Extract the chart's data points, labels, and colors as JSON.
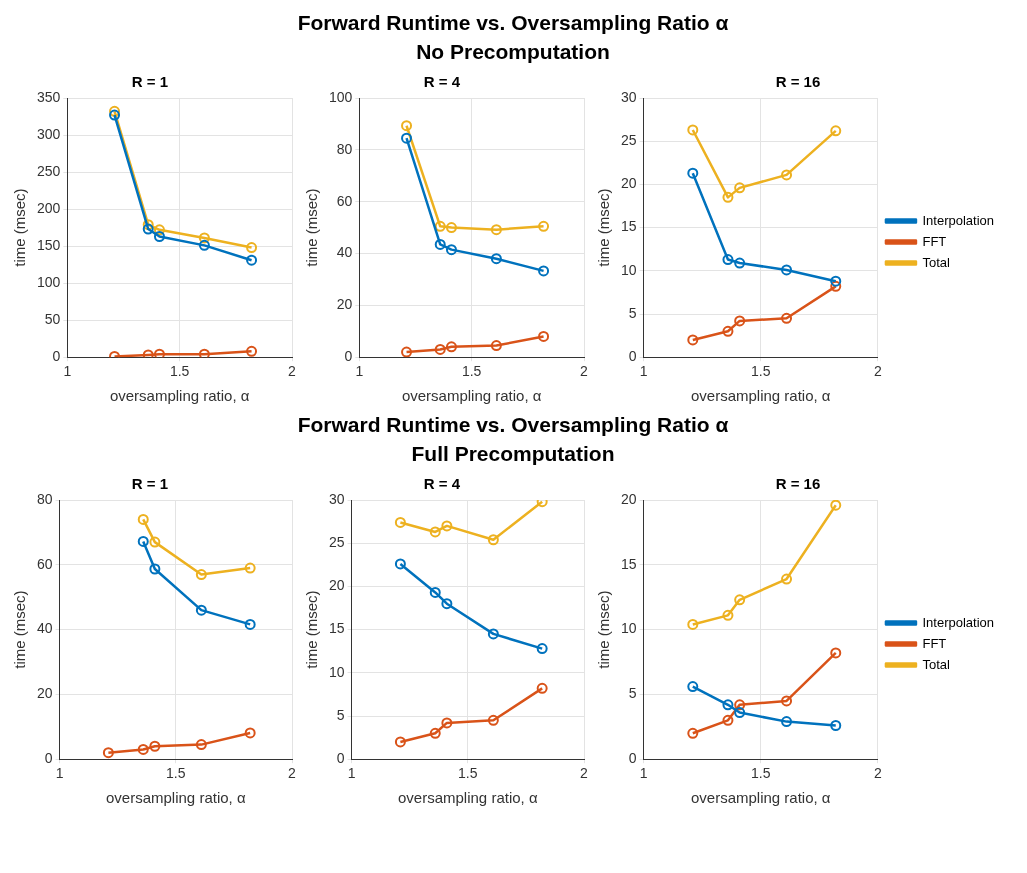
{
  "chart_data": [
    {
      "type": "other",
      "title": "Forward Runtime vs. Oversampling Ratio α",
      "subtitle": "No Precomputation"
    },
    {
      "type": "line",
      "title": "R = 1",
      "xlabel": "oversampling ratio, α",
      "ylabel": "time (msec)",
      "x": [
        1.21,
        1.36,
        1.41,
        1.61,
        1.82
      ],
      "xlim": [
        1,
        2
      ],
      "xticks": [
        1,
        1.5,
        2
      ],
      "ylim": [
        0,
        350
      ],
      "yticks": [
        0,
        50,
        100,
        150,
        200,
        250,
        300,
        350
      ],
      "grid": true,
      "marker": "circle",
      "line_style": "solid",
      "legend": false,
      "series": [
        {
          "color": "#0072bd",
          "values": [
            327,
            173,
            163,
            151,
            131
          ]
        },
        {
          "color": "#d95319",
          "values": [
            1,
            3,
            4,
            4,
            8
          ]
        },
        {
          "color": "#edb120",
          "values": [
            332,
            179,
            172,
            161,
            148
          ]
        }
      ]
    },
    {
      "type": "line",
      "title": "R = 4",
      "xlabel": "oversampling ratio, α",
      "ylabel": "time (msec)",
      "x": [
        1.21,
        1.36,
        1.41,
        1.61,
        1.82
      ],
      "xlim": [
        1,
        2
      ],
      "xticks": [
        1,
        1.5,
        2
      ],
      "ylim": [
        0,
        100
      ],
      "yticks": [
        0,
        20,
        40,
        60,
        80,
        100
      ],
      "grid": true,
      "marker": "circle",
      "line_style": "solid",
      "legend": false,
      "series": [
        {
          "color": "#0072bd",
          "values": [
            84.5,
            43.5,
            41.5,
            38,
            33.3
          ]
        },
        {
          "color": "#d95319",
          "values": [
            2,
            3,
            4,
            4.5,
            8
          ]
        },
        {
          "color": "#edb120",
          "values": [
            89.3,
            50.5,
            50,
            49.2,
            50.5
          ]
        }
      ]
    },
    {
      "type": "line",
      "title": "R = 16",
      "xlabel": "oversampling ratio, α",
      "ylabel": "time (msec)",
      "x": [
        1.21,
        1.36,
        1.41,
        1.61,
        1.82
      ],
      "xlim": [
        1,
        2
      ],
      "xticks": [
        1,
        1.5,
        2
      ],
      "ylim": [
        0,
        30
      ],
      "yticks": [
        0,
        5,
        10,
        15,
        20,
        25,
        30
      ],
      "grid": true,
      "marker": "circle",
      "line_style": "solid",
      "legend": "right",
      "series": [
        {
          "name": "Interpolation",
          "color": "#0072bd",
          "values": [
            21.3,
            11.3,
            10.9,
            10.1,
            8.8
          ]
        },
        {
          "name": "FFT",
          "color": "#d95319",
          "values": [
            2,
            3,
            4.2,
            4.5,
            8.2
          ]
        },
        {
          "name": "Total",
          "color": "#edb120",
          "values": [
            26.3,
            18.5,
            19.6,
            21.1,
            26.2
          ]
        }
      ]
    },
    {
      "type": "other",
      "title": "Forward Runtime vs. Oversampling Ratio α",
      "subtitle": "Full Precomputation"
    },
    {
      "type": "line",
      "title": "R = 1",
      "xlabel": "oversampling ratio, α",
      "ylabel": "time (msec)",
      "x": [
        1.21,
        1.36,
        1.41,
        1.61,
        1.82
      ],
      "xlim": [
        1,
        2
      ],
      "xticks": [
        1,
        1.5,
        2
      ],
      "ylim": [
        0,
        80
      ],
      "yticks": [
        0,
        20,
        40,
        60,
        80
      ],
      "grid": true,
      "marker": "circle",
      "line_style": "solid",
      "legend": false,
      "series": [
        {
          "color": "#0072bd",
          "values": [
            null,
            67.2,
            58.7,
            46,
            41.6
          ]
        },
        {
          "color": "#d95319",
          "values": [
            2,
            3,
            4,
            4.5,
            8.1
          ]
        },
        {
          "color": "#edb120",
          "values": [
            null,
            74,
            67,
            57,
            59
          ]
        }
      ]
    },
    {
      "type": "line",
      "title": "R = 4",
      "xlabel": "oversampling ratio, α",
      "ylabel": "time (msec)",
      "x": [
        1.21,
        1.36,
        1.41,
        1.61,
        1.82
      ],
      "xlim": [
        1,
        2
      ],
      "xticks": [
        1,
        1.5,
        2
      ],
      "ylim": [
        0,
        30
      ],
      "yticks": [
        0,
        5,
        10,
        15,
        20,
        25,
        30
      ],
      "grid": true,
      "marker": "circle",
      "line_style": "solid",
      "legend": false,
      "series": [
        {
          "color": "#0072bd",
          "values": [
            22.6,
            19.3,
            18,
            14.5,
            12.8
          ]
        },
        {
          "color": "#d95319",
          "values": [
            2,
            3,
            4.2,
            4.5,
            8.2
          ]
        },
        {
          "color": "#edb120",
          "values": [
            27.4,
            26.3,
            27,
            25.4,
            29.8
          ]
        }
      ]
    },
    {
      "type": "line",
      "title": "R = 16",
      "xlabel": "oversampling ratio, α",
      "ylabel": "time (msec)",
      "x": [
        1.21,
        1.36,
        1.41,
        1.61,
        1.82
      ],
      "xlim": [
        1,
        2
      ],
      "xticks": [
        1,
        1.5,
        2
      ],
      "ylim": [
        0,
        20
      ],
      "yticks": [
        0,
        5,
        10,
        15,
        20
      ],
      "grid": true,
      "marker": "circle",
      "line_style": "solid",
      "legend": "right",
      "series": [
        {
          "name": "Interpolation",
          "color": "#0072bd",
          "values": [
            5.6,
            4.2,
            3.6,
            2.9,
            2.6
          ]
        },
        {
          "name": "FFT",
          "color": "#d95319",
          "values": [
            2,
            3,
            4.2,
            4.5,
            8.2
          ]
        },
        {
          "name": "Total",
          "color": "#edb120",
          "values": [
            10.4,
            11.1,
            12.3,
            13.9,
            19.6
          ]
        }
      ]
    }
  ]
}
